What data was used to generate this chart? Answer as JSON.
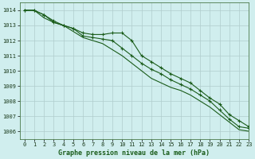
{
  "title": "Graphe pression niveau de la mer (hPa)",
  "background_color": "#d0eeee",
  "grid_color": "#b0cccc",
  "line_color": "#1a5c1a",
  "xlim": [
    -0.5,
    23
  ],
  "ylim": [
    1005.5,
    1014.5
  ],
  "yticks": [
    1006,
    1007,
    1008,
    1009,
    1010,
    1011,
    1012,
    1013,
    1014
  ],
  "xticks": [
    0,
    1,
    2,
    3,
    4,
    5,
    6,
    7,
    8,
    9,
    10,
    11,
    12,
    13,
    14,
    15,
    16,
    17,
    18,
    19,
    20,
    21,
    22,
    23
  ],
  "line1_x": [
    0,
    1,
    2,
    3,
    4,
    5,
    6,
    7,
    8,
    9,
    10,
    11,
    12,
    13,
    14,
    15,
    16,
    17,
    18,
    19,
    20,
    21,
    22,
    23
  ],
  "line1_y": [
    1014.0,
    1014.0,
    1013.7,
    1013.3,
    1013.0,
    1012.8,
    1012.5,
    1012.4,
    1012.4,
    1012.5,
    1012.5,
    1012.0,
    1011.0,
    1010.6,
    1010.2,
    1009.8,
    1009.5,
    1009.2,
    1008.7,
    1008.2,
    1007.8,
    1007.1,
    1006.7,
    1006.3
  ],
  "line2_x": [
    0,
    1,
    2,
    3,
    4,
    5,
    6,
    7,
    8,
    9,
    10,
    11,
    12,
    13,
    14,
    15,
    16,
    17,
    18,
    19,
    20,
    21,
    22,
    23
  ],
  "line2_y": [
    1014.0,
    1014.0,
    1013.7,
    1013.2,
    1013.0,
    1012.8,
    1012.3,
    1012.2,
    1012.1,
    1012.0,
    1011.5,
    1011.0,
    1010.5,
    1010.1,
    1009.8,
    1009.4,
    1009.1,
    1008.8,
    1008.4,
    1008.0,
    1007.4,
    1006.8,
    1006.3,
    1006.2
  ],
  "line3_x": [
    0,
    1,
    2,
    3,
    4,
    5,
    6,
    7,
    8,
    9,
    10,
    11,
    12,
    13,
    14,
    15,
    16,
    17,
    18,
    19,
    20,
    21,
    22,
    23
  ],
  "line3_y": [
    1014.0,
    1014.0,
    1013.5,
    1013.2,
    1013.0,
    1012.6,
    1012.2,
    1012.0,
    1011.8,
    1011.4,
    1011.0,
    1010.5,
    1010.0,
    1009.5,
    1009.2,
    1008.9,
    1008.7,
    1008.4,
    1008.0,
    1007.6,
    1007.1,
    1006.6,
    1006.1,
    1006.0
  ],
  "xlabel_fontsize": 6.0,
  "tick_fontsize": 5.0
}
